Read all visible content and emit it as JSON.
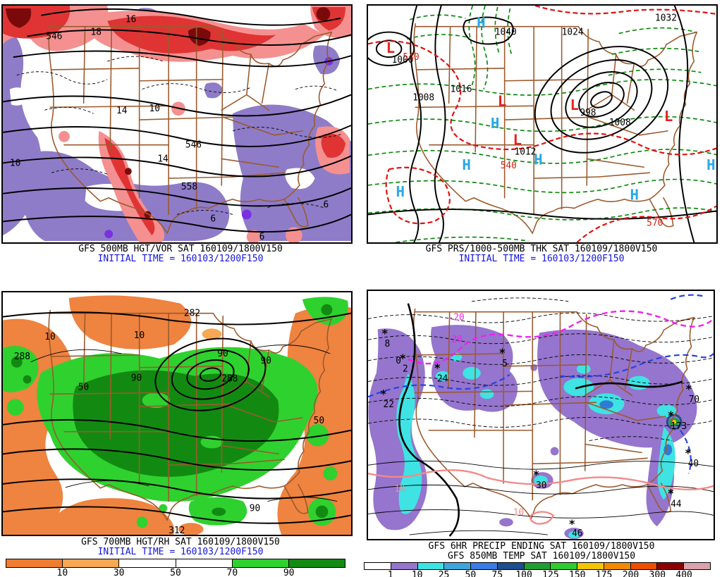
{
  "panels": {
    "vort": {
      "title": "GFS 500MB HGT/VOR SAT 160109/1800V150",
      "init_time": "INITIAL TIME = 160103/1200F150",
      "labels": [
        "546",
        "16",
        "18",
        "14",
        "10",
        "546",
        "558",
        "6",
        "6",
        "10",
        "14",
        "6"
      ]
    },
    "slp": {
      "title": "GFS PRS/1000-500MB THK SAT 160109/1800V150",
      "init_time": "INITIAL TIME = 160103/1200F150",
      "high_marker": "H",
      "low_marker": "L",
      "pressure_labels": [
        "1040",
        "1032",
        "1024",
        "1016",
        "1008",
        "1000",
        "998",
        "1012",
        "1008"
      ],
      "thickness_labels": [
        "540",
        "540",
        "570"
      ]
    },
    "rh": {
      "title": "GFS 700MB HGT/RH SAT 160109/1800V150",
      "init_time": "INITIAL TIME = 160103/1200F150",
      "labels": [
        "282",
        "288",
        "288",
        "312",
        "90",
        "90",
        "90",
        "90",
        "50",
        "50",
        "10",
        "10"
      ],
      "colorbar": {
        "ticks": [
          "10",
          "30",
          "50",
          "70",
          "90"
        ],
        "colors": [
          "#ee7d32",
          "#f6a854",
          "#ffffff",
          "#ffffff",
          "#2fd12f",
          "#138a13"
        ]
      }
    },
    "precip": {
      "title": "GFS 6HR PRECIP ENDING SAT 160109/1800V150",
      "subtitle": "GFS 850MB TEMP SAT 160109/1800V150",
      "snow_marker": "*",
      "amount_labels": [
        "8",
        "2",
        "24",
        "22",
        "5",
        "70",
        "173",
        "40",
        "44",
        "30",
        "46"
      ],
      "temp_labels": [
        "-20",
        "-20",
        "10",
        "10",
        "0"
      ],
      "colorbar": {
        "ticks": [
          "1",
          "10",
          "25",
          "50",
          "75",
          "100",
          "125",
          "150",
          "175",
          "200",
          "300",
          "400"
        ],
        "colors": [
          "#ffffff",
          "#9575cd",
          "#3ce3e3",
          "#3fa5dd",
          "#3a7ce6",
          "#1d4e8e",
          "#1f9e33",
          "#2ecc2e",
          "#f2c500",
          "#f28a00",
          "#ee4e00",
          "#8e0000",
          "#d9a2ac"
        ]
      }
    }
  },
  "colors": {
    "init_time_text": "#1414dd",
    "high_marker": "#29a8e8",
    "low_marker": "#e82020",
    "state_borders": "#9c5a2d",
    "thickness_warm_line": "#e01010",
    "thickness_cold_line": "#0a8a0a",
    "vort_positive": "#e03434",
    "vort_negative": "#8e7cc8",
    "temp_minus20_line": "#f020f0",
    "temp_plus10_line": "#f28a8a"
  }
}
